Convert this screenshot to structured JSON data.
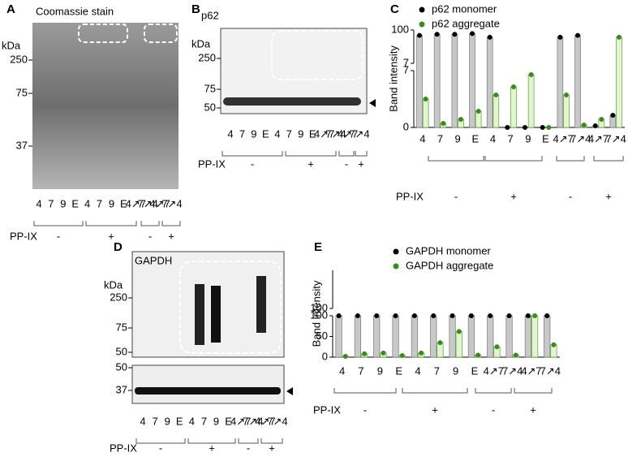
{
  "panels": {
    "a": {
      "label": "A",
      "title": "Coomassie stain",
      "unit": "kDa",
      "markers": [
        250,
        75,
        37
      ],
      "lanes": [
        "4",
        "7",
        "9",
        "E",
        "4",
        "7",
        "9",
        "E",
        "4↗7",
        "7↗4",
        "4↗7",
        "7↗4"
      ],
      "treatment": "PP-IX",
      "groups": [
        "-",
        "+",
        "-",
        "+"
      ]
    },
    "b": {
      "label": "B",
      "title": "p62",
      "unit": "kDa",
      "markers": [
        250,
        75,
        50
      ],
      "lanes": [
        "4",
        "7",
        "9",
        "E",
        "4",
        "7",
        "9",
        "E",
        "4↗7",
        "7↗4",
        "4↗7",
        "7↗4"
      ],
      "treatment": "PP-IX",
      "groups": [
        "-",
        "+",
        "-",
        "+"
      ]
    },
    "d": {
      "label": "D",
      "title": "GAPDH",
      "unit": "kDa",
      "markers": [
        250,
        75,
        50
      ],
      "markers_lower": [
        50,
        37
      ],
      "lanes": [
        "4",
        "7",
        "9",
        "E",
        "4",
        "7",
        "9",
        "E",
        "4↗7",
        "7↗4",
        "4↗7",
        "7↗4"
      ],
      "treatment": "PP-IX",
      "groups": [
        "-",
        "+",
        "-",
        "+"
      ]
    }
  },
  "chart_data": [
    {
      "type": "bar",
      "label": "C",
      "y_label": "Band intensity",
      "categories": [
        "4",
        "7",
        "9",
        "E",
        "4",
        "7",
        "9",
        "E",
        "4↗7",
        "7↗4",
        "4↗7",
        "7↗4"
      ],
      "series": [
        {
          "name": "p62 monomer",
          "color": "#000000",
          "bar_color": "#c8c8c8",
          "values": [
            85,
            88,
            88,
            90,
            80,
            0,
            0,
            0,
            80,
            85,
            0.2,
            1.5
          ]
        },
        {
          "name": "p62 aggregate",
          "color": "#3a8a1e",
          "bar_color": "#e2f5d2",
          "values": [
            3.5,
            0.5,
            1,
            2,
            4,
            5,
            6.5,
            0,
            4,
            0.3,
            1,
            80
          ]
        }
      ],
      "ylim_lower": [
        0,
        7
      ],
      "yticks_lower": [
        0,
        7
      ],
      "ylim_upper": [
        7,
        100
      ],
      "yticks_upper": [
        7,
        100
      ],
      "treatment": "PP-IX",
      "groups": [
        "-",
        "+",
        "-",
        "+"
      ]
    },
    {
      "type": "bar",
      "label": "E",
      "y_label": "Band intensity",
      "categories": [
        "4",
        "7",
        "9",
        "E",
        "4",
        "7",
        "9",
        "E",
        "4↗7",
        "7↗4",
        "4↗7",
        "7↗4"
      ],
      "series": [
        {
          "name": "GAPDH monomer",
          "color": "#000000",
          "bar_color": "#c8c8c8",
          "values": [
            100,
            100,
            100,
            100,
            100,
            100,
            100,
            100,
            100,
            100,
            100,
            100
          ]
        },
        {
          "name": "GAPDH aggregate",
          "color": "#3a8a1e",
          "bar_color": "#e2f5d2",
          "values": [
            2,
            8,
            10,
            4,
            10,
            35,
            62,
            5,
            25,
            5,
            100,
            30
          ]
        }
      ],
      "ylim_lower": [
        0,
        100
      ],
      "yticks_lower": [
        0,
        50,
        100
      ],
      "ylim_upper": [
        100,
        200
      ],
      "yticks_upper": [
        100
      ],
      "treatment": "PP-IX",
      "groups": [
        "-",
        "+",
        "-",
        "+"
      ]
    }
  ]
}
